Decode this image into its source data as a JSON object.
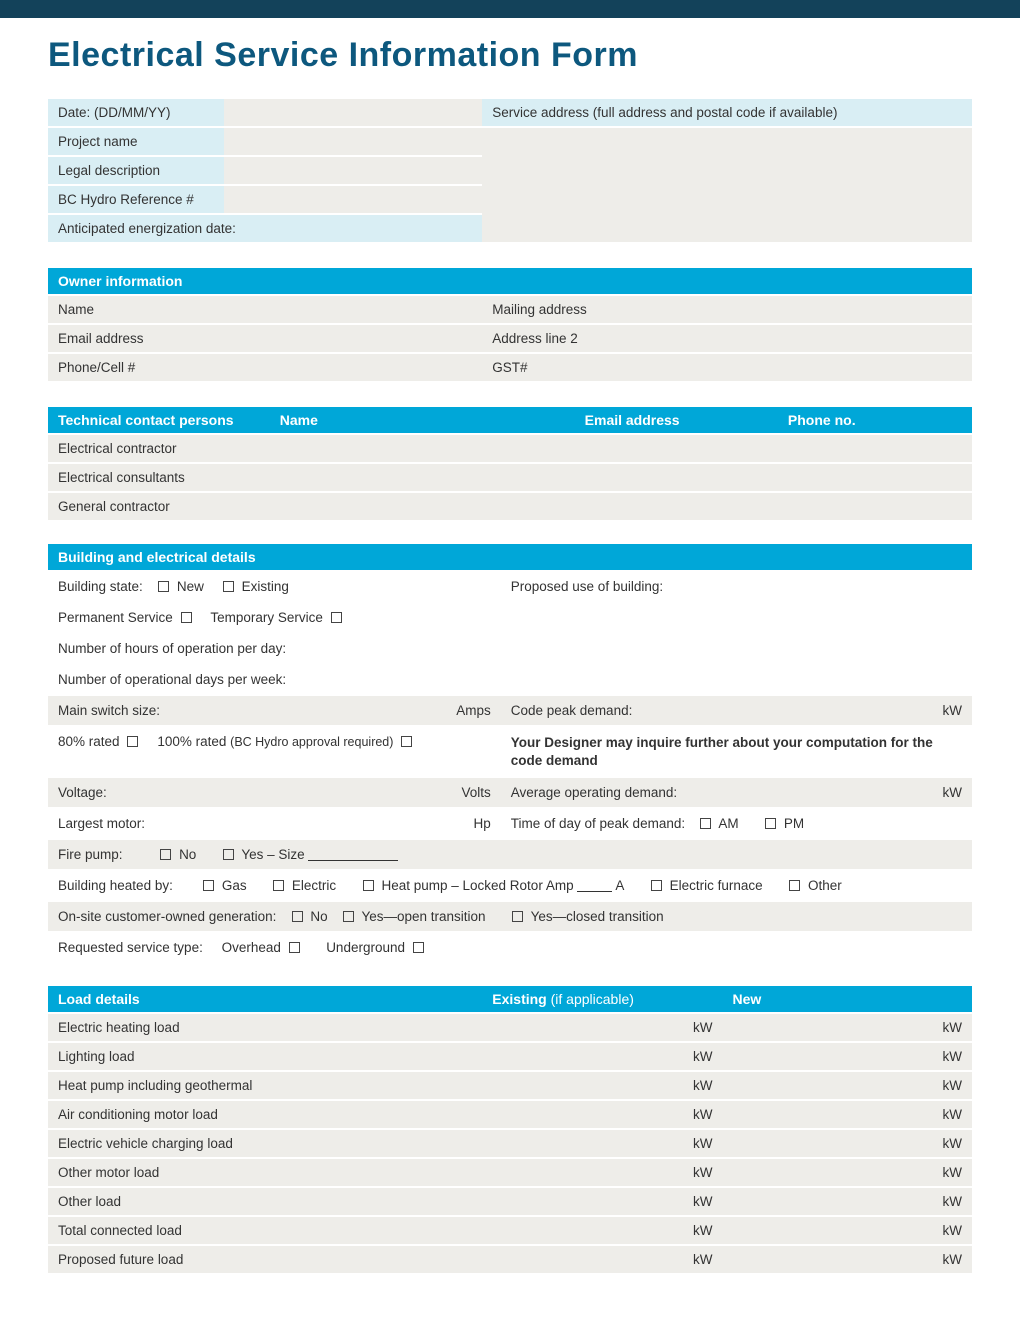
{
  "colors": {
    "top_bar": "#13425a",
    "title": "#0d587e",
    "cyan": "#00a7d8",
    "lt_blue": "#d9eef4",
    "grey_row": "#eeede9"
  },
  "title": "Electrical Service Information Form",
  "basic": {
    "date": "Date: (DD/MM/YY)",
    "service_addr": "Service address (full address and postal code if available)",
    "project_name": "Project name",
    "legal_desc": "Legal description",
    "bchydro_ref": "BC Hydro Reference #",
    "energ_date": "Anticipated energization date:"
  },
  "owner": {
    "header": "Owner information",
    "name": "Name",
    "mailing": "Mailing address",
    "email": "Email address",
    "addr2": "Address line 2",
    "phone": "Phone/Cell #",
    "gst": "GST#"
  },
  "tech": {
    "header": "Technical contact persons",
    "col_name": "Name",
    "col_email": "Email address",
    "col_phone": "Phone no.",
    "rows": [
      "Electrical contractor",
      "Electrical consultants",
      "General contractor"
    ]
  },
  "bld": {
    "header": "Building and electrical details",
    "state": "Building state:",
    "new": "New",
    "existing": "Existing",
    "proposed": "Proposed use of building:",
    "perm": "Permanent Service",
    "temp": "Temporary Service",
    "hours": "Number of hours of operation per day:",
    "days": "Number of operational days per week:",
    "main_switch": "Main switch size:",
    "amps": "Amps",
    "rated80": "80% rated",
    "rated100": "100% rated",
    "rated100_note": "(BC Hydro approval required)",
    "code_peak": "Code peak demand:",
    "kw": "kW",
    "designer_note": "Your Designer may inquire further about your computation for the code demand",
    "voltage": "Voltage:",
    "volts": "Volts",
    "avg_demand": "Average operating demand:",
    "largest_motor": "Largest motor:",
    "hp": "Hp",
    "peak_time": "Time of day of peak demand:",
    "am": "AM",
    "pm": "PM",
    "fire_pump": "Fire pump:",
    "no": "No",
    "yes_size": "Yes – Size",
    "heated_by": "Building heated by:",
    "gas": "Gas",
    "electric": "Electric",
    "heatpump": "Heat pump – Locked Rotor Amp",
    "a": "A",
    "efurnace": "Electric furnace",
    "other": "Other",
    "onsite_gen": "On-site customer-owned generation:",
    "yes_open": "Yes—open transition",
    "yes_closed": "Yes—closed transition",
    "req_service": "Requested service type:",
    "overhead": "Overhead",
    "underground": "Underground"
  },
  "load": {
    "header": "Load details",
    "col_existing": "Existing",
    "col_existing_note": "(if applicable)",
    "col_new": "New",
    "unit": "kW",
    "rows": [
      "Electric heating load",
      "Lighting load",
      "Heat pump including geothermal",
      "Air conditioning motor load",
      "Electric vehicle charging load",
      "Other motor load",
      "Other load",
      "Total connected load",
      "Proposed future load"
    ]
  }
}
